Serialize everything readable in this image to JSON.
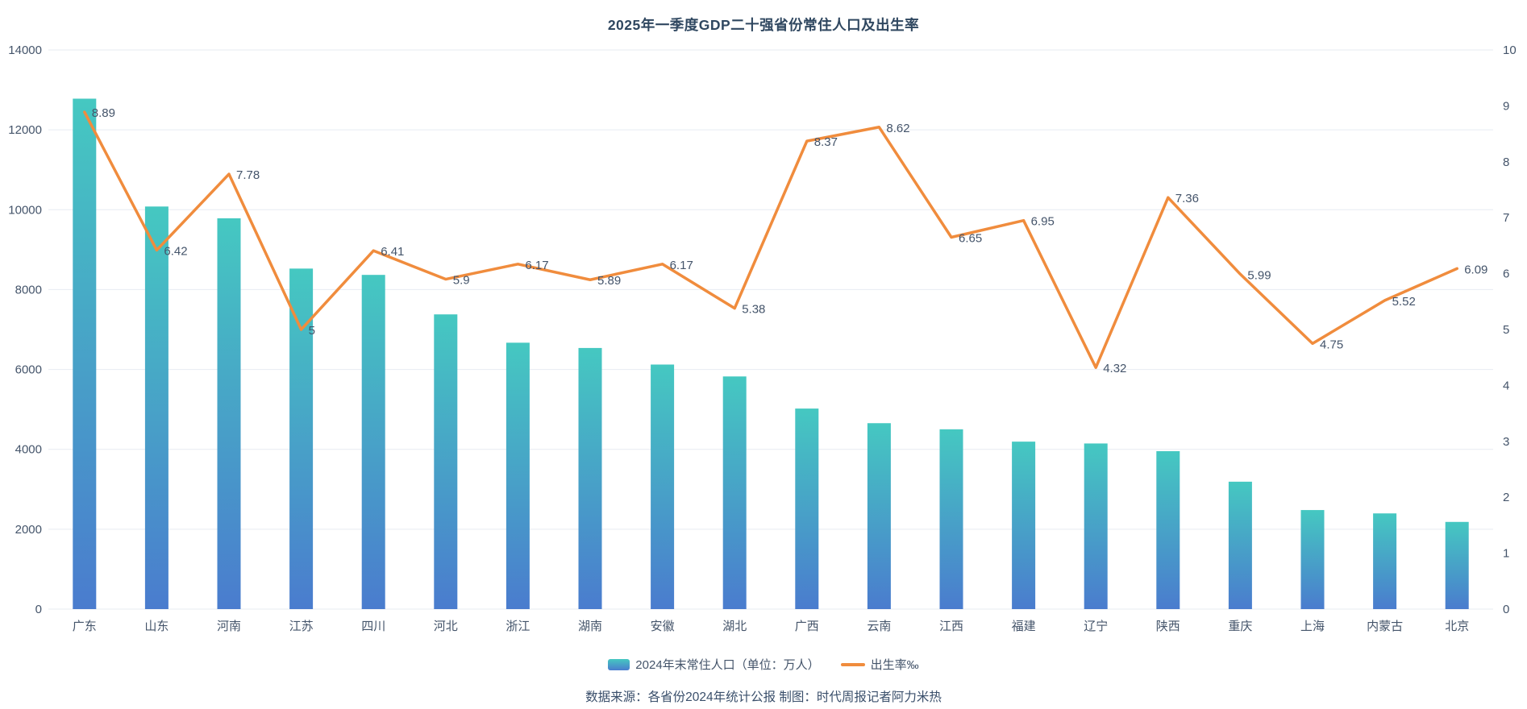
{
  "title": "2025年一季度GDP二十强省份常住人口及出生率",
  "source_note": "数据来源：各省份2024年统计公报 制图：时代周报记者阿力米热",
  "legend": [
    {
      "label": "2024年末常住人口（单位：万人）",
      "type": "bar"
    },
    {
      "label": "出生率‰",
      "type": "line"
    }
  ],
  "colors": {
    "bar_gradient_top": "#45c8c1",
    "bar_gradient_bottom": "#4a7cce",
    "line_color": "#f08c3d",
    "axis_text": "#44546a",
    "title_text": "#2f4760",
    "gridline": "#e7ebf2"
  },
  "chart_data": {
    "type": "bar+line",
    "title": "2025年一季度GDP二十强省份常住人口及出生率",
    "categories": [
      "广东",
      "山东",
      "河南",
      "江苏",
      "四川",
      "河北",
      "浙江",
      "湖南",
      "安徽",
      "湖北",
      "广西",
      "云南",
      "江西",
      "福建",
      "辽宁",
      "陕西",
      "重庆",
      "上海",
      "内蒙古",
      "北京"
    ],
    "series": [
      {
        "name": "2024年末常住人口（单位：万人）",
        "type": "bar",
        "yaxis": "left",
        "values": [
          12780,
          10080,
          9785,
          8526,
          8368,
          7379,
          6670,
          6538,
          6123,
          5825,
          5021,
          4655,
          4502,
          4193,
          4147,
          3954,
          3190,
          2480,
          2396,
          2183
        ]
      },
      {
        "name": "出生率‰",
        "type": "line",
        "yaxis": "right",
        "point_labels_shown": true,
        "values": [
          8.89,
          6.42,
          7.78,
          5,
          6.41,
          5.9,
          6.17,
          5.89,
          6.17,
          5.38,
          8.37,
          8.62,
          6.65,
          6.95,
          4.32,
          7.36,
          5.99,
          4.75,
          5.52,
          6.09
        ]
      }
    ],
    "left_axis": {
      "min": 0,
      "max": 14000,
      "step": 2000
    },
    "right_axis": {
      "min": 0,
      "max": 10,
      "step": 1
    },
    "grid": "horizontal-only",
    "legend_position": "bottom"
  }
}
